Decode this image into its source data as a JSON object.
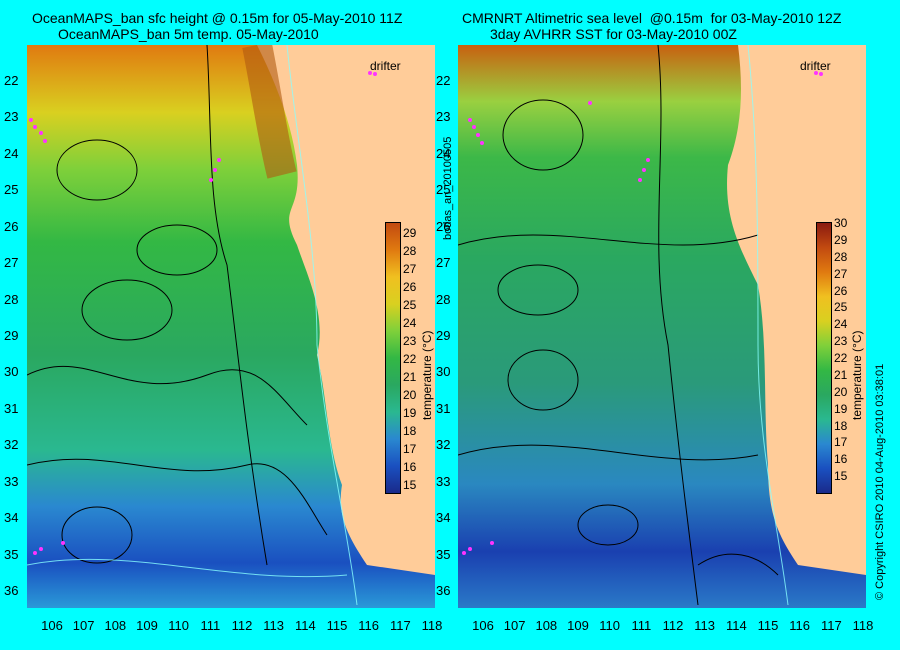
{
  "left": {
    "title_line1": "OceanMAPS_ban sfc height @ 0.15m for 05-May-2010 11Z",
    "title_line2": "OceanMAPS_ban 5m temp. 05-May-2010",
    "drifter_label": "drifter",
    "colorbar_label": "temperature (°C)",
    "colorbar_ticks": [
      "29",
      "28",
      "27",
      "26",
      "25",
      "24",
      "23",
      "22",
      "21",
      "20",
      "19",
      "18",
      "17",
      "16",
      "15"
    ]
  },
  "right": {
    "title_line1": "CMRNRT Altimetric sea level  @0.15m  for 03-May-2010 12Z",
    "title_line2": "3day AVHRR SST for 03-May-2010 00Z",
    "drifter_label": "drifter",
    "colorbar_label": "temperature (°C)",
    "colorbar_ticks": [
      "30",
      "29",
      "28",
      "27",
      "26",
      "25",
      "24",
      "23",
      "22",
      "21",
      "20",
      "19",
      "18",
      "17",
      "16",
      "15"
    ]
  },
  "center_label": "bodas_an_20100505",
  "right_side_label": "© Copyright CSIRO 2010    04-Aug-2010 03:38:01",
  "lat_ticks": [
    "22",
    "23",
    "24",
    "25",
    "26",
    "27",
    "28",
    "29",
    "30",
    "31",
    "32",
    "33",
    "34",
    "35",
    "36"
  ],
  "lon_ticks": [
    "106",
    "107",
    "108",
    "109",
    "110",
    "111",
    "112",
    "113",
    "114",
    "115",
    "116",
    "117",
    "118"
  ],
  "colors": {
    "background": "#00ffff",
    "land": "#ffcc99",
    "drifter": "#ff33ff"
  }
}
